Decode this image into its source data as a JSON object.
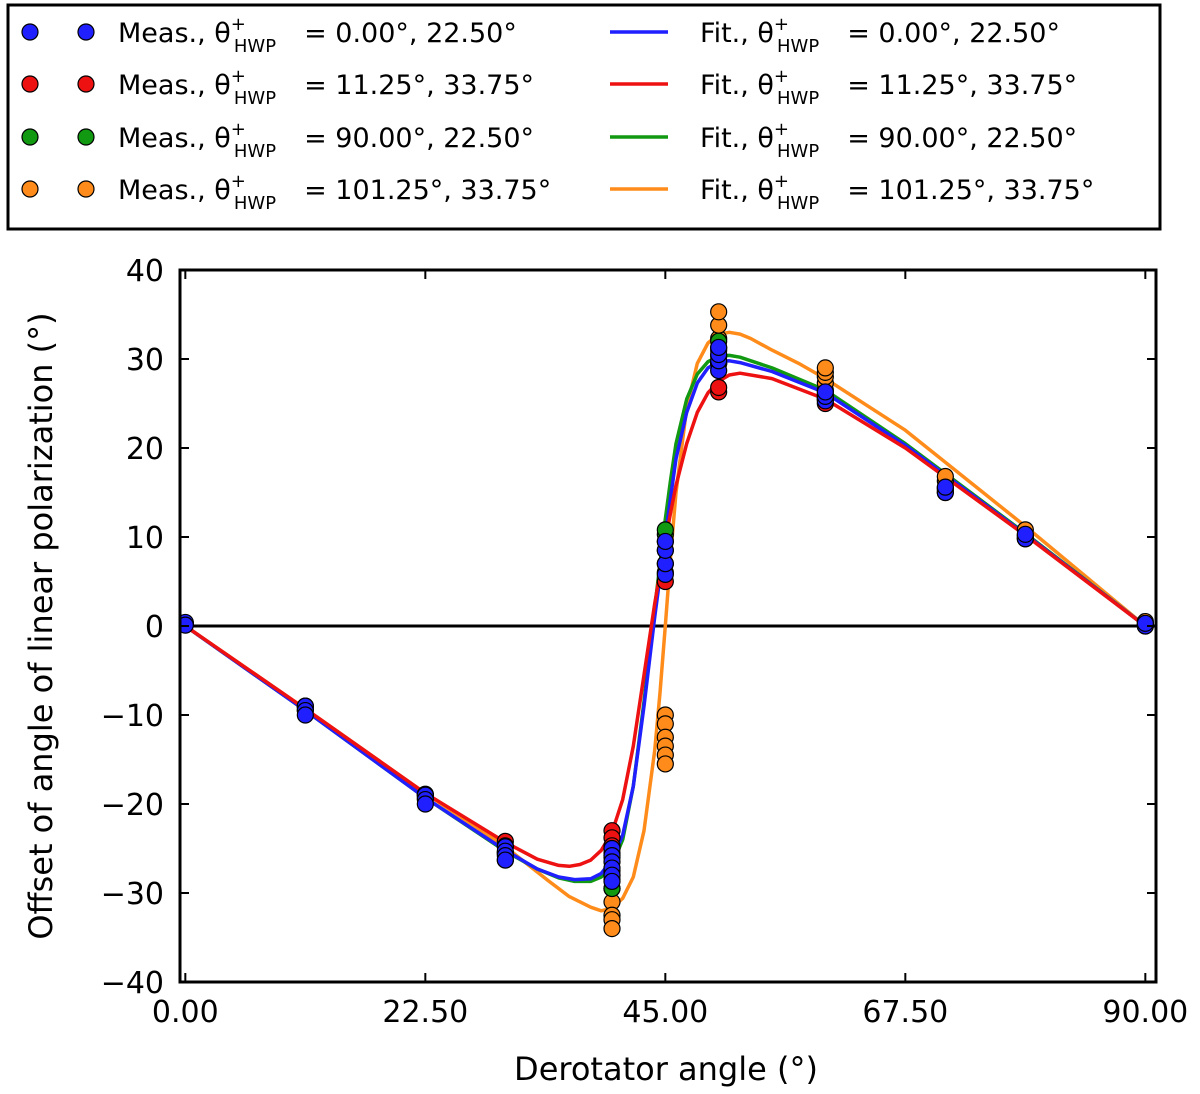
{
  "chart_data": {
    "type": "line",
    "title": "",
    "xlabel": "Derotator angle (°)",
    "ylabel": "Offset of angle of linear polarization (°)",
    "xlim": [
      -0.5,
      91
    ],
    "ylim": [
      -40,
      40
    ],
    "xticks": [
      0,
      22.5,
      45,
      67.5,
      90
    ],
    "xtick_labels": [
      "0.00",
      "22.50",
      "45.00",
      "67.50",
      "90.00"
    ],
    "yticks": [
      -40,
      -30,
      -20,
      -10,
      0,
      10,
      20,
      30,
      40
    ],
    "ytick_labels": [
      "−40",
      "−30",
      "−20",
      "−10",
      "0",
      "10",
      "20",
      "30",
      "40"
    ],
    "reference_line_y": 0,
    "legend": {
      "placement": "top, above plot",
      "symbol": "θ",
      "superscript": "+",
      "subscript": "HWP",
      "entries": [
        {
          "kind": "meas",
          "prefix": "Meas.,",
          "values": "= 0.00°, 22.50°",
          "color": "#1f1fff"
        },
        {
          "kind": "meas",
          "prefix": "Meas.,",
          "values": "= 11.25°, 33.75°",
          "color": "#ee1111"
        },
        {
          "kind": "meas",
          "prefix": "Meas.,",
          "values": "= 90.00°, 22.50°",
          "color": "#119911"
        },
        {
          "kind": "meas",
          "prefix": "Meas.,",
          "values": "= 101.25°, 33.75°",
          "color": "#ff8c1a"
        },
        {
          "kind": "fit",
          "prefix": "Fit.,",
          "values": "= 0.00°, 22.50°",
          "color": "#1f1fff"
        },
        {
          "kind": "fit",
          "prefix": "Fit.,",
          "values": "= 11.25°, 33.75°",
          "color": "#ee1111"
        },
        {
          "kind": "fit",
          "prefix": "Fit.,",
          "values": "= 90.00°, 22.50°",
          "color": "#119911"
        },
        {
          "kind": "fit",
          "prefix": "Fit.,",
          "values": "= 101.25°, 33.75°",
          "color": "#ff8c1a"
        }
      ]
    },
    "series": [
      {
        "name": "Fit 101.25/33.75 (orange)",
        "kind": "fit",
        "color": "#ff8c1a",
        "x": [
          0,
          11.25,
          22.5,
          30,
          34,
          36,
          38,
          39,
          40,
          41,
          42,
          43,
          44,
          44.5,
          45,
          45.5,
          46,
          47,
          48,
          49,
          50,
          51,
          52,
          53,
          55,
          57.5,
          60,
          67.5,
          78.75,
          90
        ],
        "y": [
          0,
          -9.3,
          -18.8,
          -24.8,
          -28.6,
          -30.4,
          -31.6,
          -32.0,
          -31.7,
          -30.6,
          -28.2,
          -23.0,
          -14.0,
          -7.5,
          0,
          8.0,
          15.0,
          24.5,
          29.5,
          31.8,
          32.8,
          33.0,
          32.8,
          32.3,
          31.0,
          29.5,
          27.8,
          22.0,
          11.2,
          0
        ]
      },
      {
        "name": "Fit 90/22.5 (green)",
        "kind": "fit",
        "color": "#119911",
        "x": [
          0,
          11.25,
          22.5,
          30,
          33,
          35,
          36.5,
          38,
          39,
          40,
          41,
          42,
          43,
          44,
          44.5,
          45,
          45.5,
          46,
          47,
          48,
          49,
          50,
          51,
          52,
          55,
          60,
          67.5,
          78.75,
          90
        ],
        "y": [
          0,
          -9.5,
          -19.3,
          -25.3,
          -27.3,
          -28.3,
          -28.7,
          -28.7,
          -28.2,
          -26.9,
          -24.0,
          -18.0,
          -8.5,
          2.0,
          7.0,
          12.0,
          16.5,
          20.5,
          25.5,
          28.3,
          29.7,
          30.3,
          30.4,
          30.2,
          29.0,
          26.5,
          20.5,
          10.4,
          0
        ]
      },
      {
        "name": "Fit 0/22.5 (blue)",
        "kind": "fit",
        "color": "#1f1fff",
        "x": [
          0,
          11.25,
          22.5,
          30,
          33,
          35,
          36.5,
          38,
          39,
          40,
          41,
          42,
          43,
          44,
          44.5,
          45,
          45.5,
          46,
          47,
          48,
          49,
          50,
          51,
          52,
          55,
          60,
          67.5,
          78.75,
          90
        ],
        "y": [
          0,
          -9.5,
          -19.3,
          -25.2,
          -27.3,
          -28.2,
          -28.5,
          -28.4,
          -27.8,
          -26.3,
          -23.5,
          -18.0,
          -9.0,
          1.0,
          5.5,
          10.0,
          14.5,
          18.8,
          24.0,
          27.3,
          29.0,
          29.7,
          29.8,
          29.6,
          28.6,
          26.2,
          20.3,
          10.3,
          0
        ]
      },
      {
        "name": "Fit 11.25/33.75 (red)",
        "kind": "fit",
        "color": "#ee1111",
        "x": [
          0,
          11.25,
          22.5,
          30,
          33,
          35,
          36,
          37,
          38,
          39,
          40,
          41,
          42,
          43,
          44,
          44.5,
          45,
          45.5,
          46,
          47,
          48,
          49,
          50,
          51,
          52,
          55,
          60,
          67.5,
          78.75,
          90
        ],
        "y": [
          0,
          -9.3,
          -18.8,
          -24.3,
          -26.2,
          -26.9,
          -27.0,
          -26.8,
          -26.3,
          -25.2,
          -23.2,
          -19.5,
          -13.5,
          -5.5,
          2.5,
          6.0,
          9.5,
          12.8,
          15.8,
          20.5,
          24.0,
          26.2,
          27.5,
          28.2,
          28.4,
          27.8,
          25.5,
          20.0,
          10.2,
          0
        ]
      },
      {
        "name": "Meas. 101.25/33.75 (orange)",
        "kind": "meas",
        "color": "#ff8c1a",
        "points": [
          [
            0,
            0.3
          ],
          [
            11.25,
            -9.2
          ],
          [
            22.5,
            -19.0
          ],
          [
            30,
            -25.5
          ],
          [
            30,
            -26.3
          ],
          [
            40,
            -28.0
          ],
          [
            40,
            -29.5
          ],
          [
            40,
            -31.0
          ],
          [
            40,
            -32.5
          ],
          [
            40,
            -33.0
          ],
          [
            40,
            -34.0
          ],
          [
            45,
            -10.0
          ],
          [
            45,
            -11.0
          ],
          [
            45,
            -12.5
          ],
          [
            45,
            -13.5
          ],
          [
            45,
            -14.5
          ],
          [
            45,
            -15.5
          ],
          [
            50,
            29.5
          ],
          [
            50,
            31.0
          ],
          [
            50,
            32.3
          ],
          [
            50,
            33.8
          ],
          [
            50,
            35.3
          ],
          [
            60,
            26.5
          ],
          [
            60,
            27.3
          ],
          [
            60,
            28.0
          ],
          [
            60,
            28.5
          ],
          [
            60,
            29.0
          ],
          [
            71.25,
            15.5
          ],
          [
            71.25,
            16.3
          ],
          [
            71.25,
            16.8
          ],
          [
            78.75,
            10.2
          ],
          [
            78.75,
            10.8
          ],
          [
            90,
            0.5
          ]
        ]
      },
      {
        "name": "Meas. 90/22.5 (green)",
        "kind": "meas",
        "color": "#119911",
        "points": [
          [
            0,
            0.2
          ],
          [
            11.25,
            -9.5
          ],
          [
            22.5,
            -19.3
          ],
          [
            30,
            -25.5
          ],
          [
            40,
            -26.0
          ],
          [
            40,
            -27.5
          ],
          [
            40,
            -28.5
          ],
          [
            40,
            -29.5
          ],
          [
            45,
            8.5
          ],
          [
            45,
            9.5
          ],
          [
            45,
            10.3
          ],
          [
            45,
            10.8
          ],
          [
            50,
            29.5
          ],
          [
            50,
            30.3
          ],
          [
            50,
            31.3
          ],
          [
            50,
            32.0
          ],
          [
            60,
            25.5
          ],
          [
            60,
            26.0
          ],
          [
            71.25,
            15.3
          ],
          [
            78.75,
            10.0
          ],
          [
            90,
            0.2
          ]
        ]
      },
      {
        "name": "Meas. 11.25/33.75 (red)",
        "kind": "meas",
        "color": "#ee1111",
        "points": [
          [
            0,
            0.2
          ],
          [
            11.25,
            -9.0
          ],
          [
            22.5,
            -18.9
          ],
          [
            30,
            -24.2
          ],
          [
            30,
            -24.7
          ],
          [
            40,
            -23.0
          ],
          [
            40,
            -23.8
          ],
          [
            40,
            -24.7
          ],
          [
            40,
            -25.5
          ],
          [
            45,
            5.0
          ],
          [
            45,
            6.0
          ],
          [
            45,
            7.0
          ],
          [
            50,
            26.3
          ],
          [
            50,
            26.8
          ],
          [
            60,
            25.0
          ],
          [
            60,
            25.5
          ],
          [
            71.25,
            15.0
          ],
          [
            78.75,
            9.8
          ],
          [
            90,
            0.0
          ]
        ]
      },
      {
        "name": "Meas. 0/22.5 (blue)",
        "kind": "meas",
        "color": "#1f1fff",
        "points": [
          [
            0,
            0.4
          ],
          [
            0,
            0.1
          ],
          [
            11.25,
            -9.0
          ],
          [
            11.25,
            -9.5
          ],
          [
            11.25,
            -10.0
          ],
          [
            22.5,
            -19.0
          ],
          [
            22.5,
            -19.5
          ],
          [
            22.5,
            -20.0
          ],
          [
            30,
            -24.8
          ],
          [
            30,
            -25.3
          ],
          [
            30,
            -25.8
          ],
          [
            30,
            -26.3
          ],
          [
            40,
            -25.0
          ],
          [
            40,
            -25.8
          ],
          [
            40,
            -26.5
          ],
          [
            40,
            -27.2
          ],
          [
            40,
            -28.0
          ],
          [
            40,
            -28.7
          ],
          [
            45,
            5.8
          ],
          [
            45,
            7.0
          ],
          [
            45,
            8.5
          ],
          [
            45,
            9.5
          ],
          [
            50,
            28.7
          ],
          [
            50,
            29.8
          ],
          [
            50,
            30.5
          ],
          [
            50,
            31.3
          ],
          [
            60,
            25.3
          ],
          [
            60,
            25.8
          ],
          [
            60,
            26.3
          ],
          [
            71.25,
            15.0
          ],
          [
            71.25,
            15.6
          ],
          [
            78.75,
            9.8
          ],
          [
            78.75,
            10.3
          ],
          [
            90,
            0.0
          ],
          [
            90,
            0.3
          ]
        ]
      }
    ]
  }
}
